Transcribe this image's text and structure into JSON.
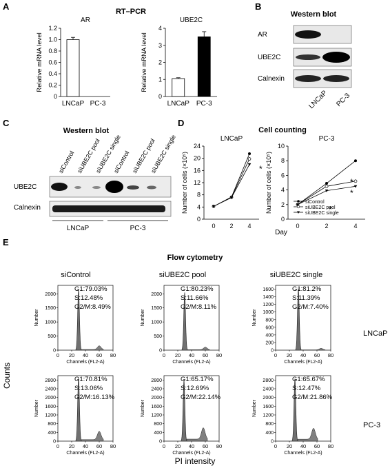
{
  "panels": {
    "A": "A",
    "B": "B",
    "C": "C",
    "D": "D",
    "E": "E"
  },
  "a": {
    "title": "RT–PCR",
    "ylabel": "Relative mRNA level",
    "categories": [
      "LNCaP",
      "PC-3"
    ]
  },
  "b": {
    "title": "Western blot",
    "rows": [
      "AR",
      "UBE2C",
      "Calnexin"
    ],
    "lanes": [
      "LNCaP",
      "PC-3"
    ]
  },
  "c": {
    "title": "Western blot",
    "rows": [
      "UBE2C",
      "Calnexin"
    ],
    "lanes": [
      "siControl",
      "siUBE2C pool",
      "siUBE2C single",
      "siControl",
      "siUBE2C pool",
      "siUBE2C single"
    ],
    "groups": [
      "LNCaP",
      "PC-3"
    ]
  },
  "d": {
    "title": "Cell counting",
    "ylabel": "Number of cells (×10⁵)",
    "xlabel": "Day",
    "star": "*",
    "legend": [
      "siControl",
      "siUBE2C pool",
      "siUBE2C single"
    ]
  },
  "e": {
    "title": "Flow cytometry",
    "columns": [
      "siControl",
      "siUBE2C pool",
      "siUBE2C single"
    ],
    "row_labels": [
      "LNCaP",
      "PC-3"
    ],
    "ylabel": "Number",
    "xlabel": "Channels (FL2-A)",
    "axis_counts": "Counts",
    "axis_pi": "PI intensity",
    "cells": [
      [
        [
          "G1:79.03%",
          "S:12.48%",
          "G2/M:8.49%"
        ],
        [
          "G1:80.23%",
          "S:11.66%",
          "G2/M:8.11%"
        ],
        [
          "G1:81.2%",
          "S:11.39%",
          "G2/M:7.40%"
        ]
      ],
      [
        [
          "G1:70.81%",
          "S:13.06%",
          "G2/M:16.13%"
        ],
        [
          "G1:65.17%",
          "S:12.69%",
          "G2/M:22.14%"
        ],
        [
          "G1:65.67%",
          "S:12.47%",
          "G2/M:21.86%"
        ]
      ]
    ]
  },
  "chart_data": [
    {
      "type": "bar",
      "title": "AR",
      "categories": [
        "LNCaP",
        "PC-3"
      ],
      "values": [
        1.0,
        0.0
      ],
      "errors": [
        0.04,
        0
      ],
      "ylim": [
        0,
        1.2
      ],
      "yticks": [
        "0",
        "0.2",
        "0.4",
        "0.6",
        "0.8",
        "1.0",
        "1.2"
      ],
      "colors": [
        "#ffffff",
        "#000000"
      ]
    },
    {
      "type": "bar",
      "title": "UBE2C",
      "categories": [
        "LNCaP",
        "PC-3"
      ],
      "values": [
        1.05,
        3.5
      ],
      "errors": [
        0.05,
        0.3
      ],
      "ylim": [
        0,
        4
      ],
      "yticks": [
        "0",
        "1",
        "2",
        "3",
        "4"
      ],
      "colors": [
        "#ffffff",
        "#000000"
      ]
    },
    {
      "type": "line",
      "title": "LNCaP",
      "x": [
        0,
        2,
        4
      ],
      "ylim": [
        0,
        24
      ],
      "yticks": [
        "0",
        "4",
        "8",
        "12",
        "16",
        "20",
        "24"
      ],
      "xticks": [
        "0",
        "2",
        "4"
      ],
      "series": [
        {
          "name": "siControl",
          "values": [
            4.2,
            7.3,
            21.5
          ]
        },
        {
          "name": "siUBE2C pool",
          "values": [
            4.2,
            7.2,
            19.8
          ]
        },
        {
          "name": "siUBE2C single",
          "values": [
            4.2,
            7.1,
            18.0
          ]
        }
      ]
    },
    {
      "type": "line",
      "title": "PC-3",
      "x": [
        0,
        2,
        4
      ],
      "ylim": [
        0,
        10
      ],
      "yticks": [
        "0",
        "2",
        "4",
        "6",
        "8",
        "10"
      ],
      "xticks": [
        "0",
        "2",
        "4"
      ],
      "series": [
        {
          "name": "siControl",
          "values": [
            2.0,
            4.9,
            8.0
          ]
        },
        {
          "name": "siUBE2C pool",
          "values": [
            2.0,
            4.5,
            5.2
          ]
        },
        {
          "name": "siUBE2C single",
          "values": [
            2.0,
            3.9,
            4.5
          ]
        }
      ]
    },
    {
      "type": "histogram",
      "title": "siControl LNCaP",
      "xticks": [
        "0",
        "20",
        "40",
        "60",
        "80"
      ],
      "yticks": [
        "0",
        "500",
        "1000",
        "1500",
        "2000"
      ],
      "ylim": [
        0,
        2300
      ],
      "g1_peak": 30,
      "g1_height": 2150,
      "g2_peak": 60,
      "g2_height": 130
    },
    {
      "type": "histogram",
      "title": "siUBE2C pool LNCaP",
      "xticks": [
        "0",
        "20",
        "40",
        "60",
        "80"
      ],
      "yticks": [
        "0",
        "500",
        "1000",
        "1500",
        "2000"
      ],
      "ylim": [
        0,
        2300
      ],
      "g1_peak": 30,
      "g1_height": 2050,
      "g2_peak": 60,
      "g2_height": 90
    },
    {
      "type": "histogram",
      "title": "siUBE2C single LNCaP",
      "xticks": [
        "0",
        "20",
        "40",
        "60",
        "80"
      ],
      "yticks": [
        "0",
        "200",
        "400",
        "600",
        "800",
        "1000",
        "1200",
        "1400",
        "1600"
      ],
      "ylim": [
        0,
        1700
      ],
      "g1_peak": 33,
      "g1_height": 1620,
      "g2_peak": 66,
      "g2_height": 40
    },
    {
      "type": "histogram",
      "title": "siControl PC-3",
      "xticks": [
        "0",
        "20",
        "40",
        "60",
        "80"
      ],
      "yticks": [
        "0",
        "400",
        "800",
        "1200",
        "1600",
        "2000",
        "2400",
        "2800"
      ],
      "ylim": [
        0,
        3000
      ],
      "g1_peak": 30,
      "g1_height": 2900,
      "g2_peak": 60,
      "g2_height": 380
    },
    {
      "type": "histogram",
      "title": "siUBE2C pool PC-3",
      "xticks": [
        "0",
        "20",
        "40",
        "60",
        "80"
      ],
      "yticks": [
        "0",
        "400",
        "800",
        "1200",
        "1600",
        "2000",
        "2400",
        "2800"
      ],
      "ylim": [
        0,
        3000
      ],
      "g1_peak": 29,
      "g1_height": 2800,
      "g2_peak": 57,
      "g2_height": 520
    },
    {
      "type": "histogram",
      "title": "siUBE2C single PC-3",
      "xticks": [
        "0",
        "20",
        "40",
        "60",
        "80"
      ],
      "yticks": [
        "0",
        "400",
        "800",
        "1200",
        "1600",
        "2000",
        "2400",
        "2800"
      ],
      "ylim": [
        0,
        3000
      ],
      "g1_peak": 28,
      "g1_height": 2860,
      "g2_peak": 55,
      "g2_height": 500
    }
  ]
}
